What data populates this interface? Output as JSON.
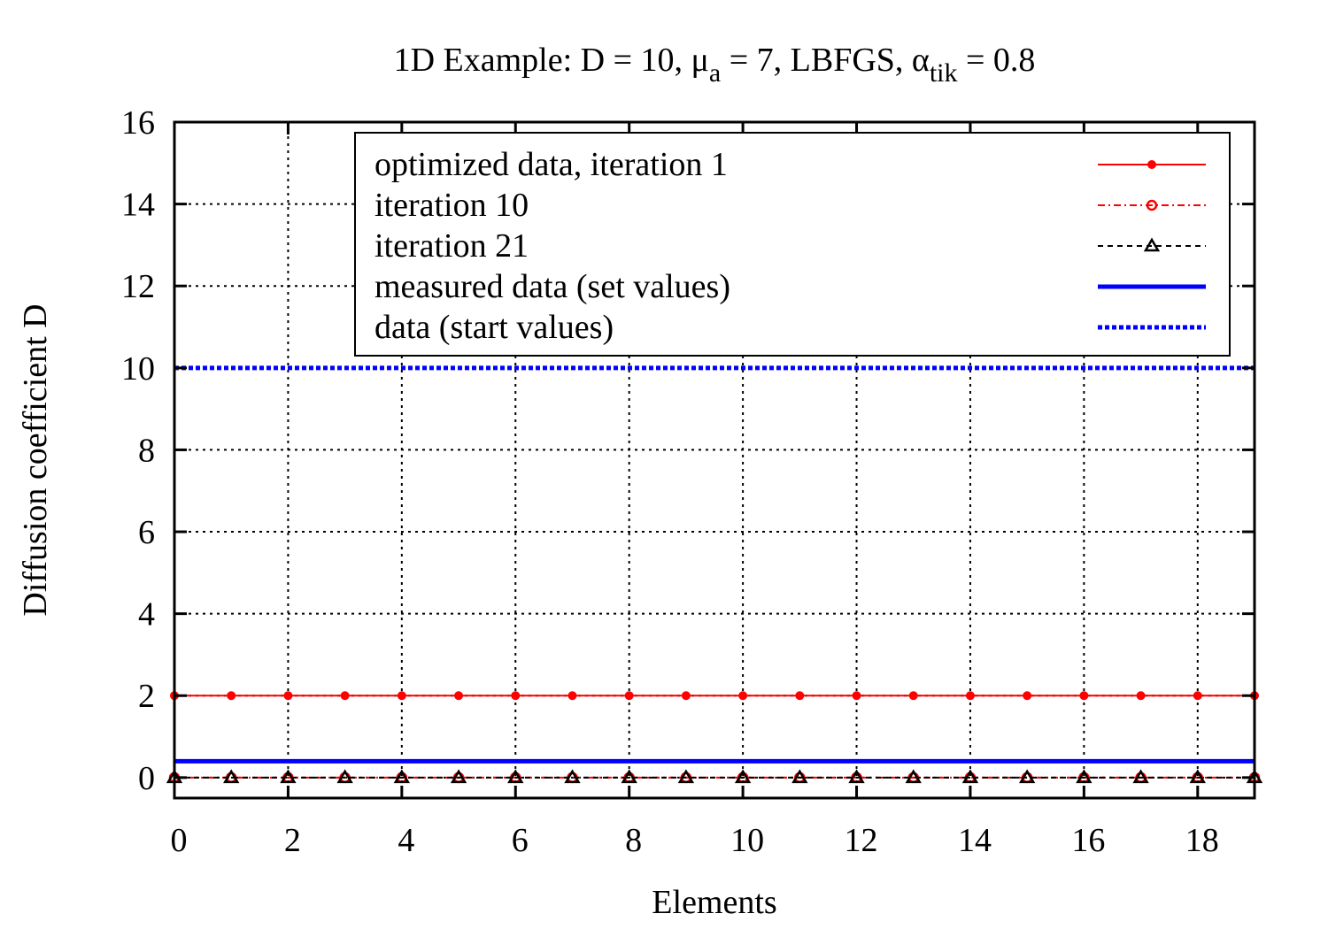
{
  "chart_data": {
    "type": "line",
    "title": "1D Example: D = 10, μa = 7, LBFGS, αtik = 0.8",
    "title_parts": {
      "prefix": "1D Example: D = 10, ",
      "mu": "μ",
      "mu_sub": "a",
      "middle": " = 7, LBFGS, ",
      "alpha": "α",
      "alpha_sub": "tik",
      "suffix": " = 0.8"
    },
    "xlabel": "Elements",
    "ylabel": "Diffusion coefficient D",
    "xlim": [
      0,
      19
    ],
    "ylim": [
      -0.5,
      16
    ],
    "grid": true,
    "legend_position": "upper right (inside)",
    "xticks": [
      "0",
      "2",
      "4",
      "6",
      "8",
      "10",
      "12",
      "14",
      "16",
      "18"
    ],
    "yticks": [
      "0",
      "2",
      "4",
      "6",
      "8",
      "10",
      "12",
      "14",
      "16"
    ],
    "x": [
      0,
      1,
      2,
      3,
      4,
      5,
      6,
      7,
      8,
      9,
      10,
      11,
      12,
      13,
      14,
      15,
      16,
      17,
      18,
      19
    ],
    "series": [
      {
        "name": "optimized data,  iteration 1",
        "color": "#ff0000",
        "style": "solid",
        "marker": "filled-circle",
        "values": [
          2,
          2,
          2,
          2,
          2,
          2,
          2,
          2,
          2,
          2,
          2,
          2,
          2,
          2,
          2,
          2,
          2,
          2,
          2,
          2
        ]
      },
      {
        "name": "iteration 10",
        "color": "#ff0000",
        "style": "dash-dot",
        "marker": "open-circle",
        "values": [
          0,
          0,
          0,
          0,
          0,
          0,
          0,
          0,
          0,
          0,
          0,
          0,
          0,
          0,
          0,
          0,
          0,
          0,
          0,
          0
        ]
      },
      {
        "name": "iteration 21",
        "color": "#000000",
        "style": "dashed",
        "marker": "open-triangle",
        "values": [
          0,
          0,
          0,
          0,
          0,
          0,
          0,
          0,
          0,
          0,
          0,
          0,
          0,
          0,
          0,
          0,
          0,
          0,
          0,
          0
        ]
      },
      {
        "name": "measured data (set values)",
        "color": "#0000ff",
        "style": "solid-thick",
        "marker": "none",
        "values": [
          0.4,
          0.4,
          0.4,
          0.4,
          0.4,
          0.4,
          0.4,
          0.4,
          0.4,
          0.4,
          0.4,
          0.4,
          0.4,
          0.4,
          0.4,
          0.4,
          0.4,
          0.4,
          0.4,
          0.4
        ]
      },
      {
        "name": "data (start values)",
        "color": "#0000ff",
        "style": "dotted-thick",
        "marker": "none",
        "values": [
          10,
          10,
          10,
          10,
          10,
          10,
          10,
          10,
          10,
          10,
          10,
          10,
          10,
          10,
          10,
          10,
          10,
          10,
          10,
          10
        ]
      }
    ]
  }
}
